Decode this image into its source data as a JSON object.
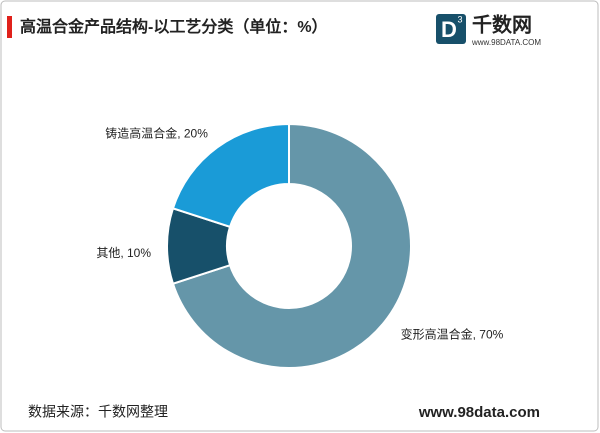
{
  "header": {
    "title": "高温合金产品结构-以工艺分类（单位：%）"
  },
  "logo": {
    "mark": "D",
    "superscript": "3",
    "name": "千数网",
    "url": "www.98DATA.COM"
  },
  "chart_data": {
    "type": "donut",
    "categories": [
      "变形高温合金",
      "其他",
      "铸造高温合金"
    ],
    "values": [
      70,
      10,
      20
    ],
    "value_labels": [
      "变形高温合金, 70%",
      "其他, 10%",
      "铸造高温合金, 20%"
    ],
    "colors": [
      "#6596a9",
      "#17506a",
      "#1a9bd7"
    ]
  },
  "footer": {
    "source": "数据来源：千数网整理",
    "url": "www.98data.com"
  }
}
